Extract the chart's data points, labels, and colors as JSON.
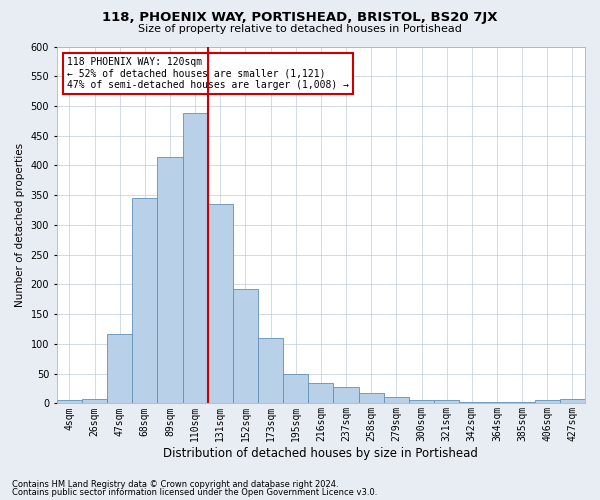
{
  "title": "118, PHOENIX WAY, PORTISHEAD, BRISTOL, BS20 7JX",
  "subtitle": "Size of property relative to detached houses in Portishead",
  "xlabel": "Distribution of detached houses by size in Portishead",
  "ylabel": "Number of detached properties",
  "bar_color": "#b8d0e8",
  "bar_edge_color": "#6090b8",
  "categories": [
    "4sqm",
    "26sqm",
    "47sqm",
    "68sqm",
    "89sqm",
    "110sqm",
    "131sqm",
    "152sqm",
    "173sqm",
    "195sqm",
    "216sqm",
    "237sqm",
    "258sqm",
    "279sqm",
    "300sqm",
    "321sqm",
    "342sqm",
    "364sqm",
    "385sqm",
    "406sqm",
    "427sqm"
  ],
  "values": [
    5,
    7,
    117,
    345,
    415,
    488,
    335,
    193,
    110,
    50,
    35,
    27,
    18,
    10,
    5,
    5,
    3,
    2,
    2,
    5,
    7
  ],
  "ylim": [
    0,
    600
  ],
  "yticks": [
    0,
    50,
    100,
    150,
    200,
    250,
    300,
    350,
    400,
    450,
    500,
    550,
    600
  ],
  "vline_bin_index": 6,
  "vline_color": "#cc0000",
  "annotation_text": "118 PHOENIX WAY: 120sqm\n← 52% of detached houses are smaller (1,121)\n47% of semi-detached houses are larger (1,008) →",
  "annotation_box_color": "#ffffff",
  "annotation_box_edge": "#cc0000",
  "footer1": "Contains HM Land Registry data © Crown copyright and database right 2024.",
  "footer2": "Contains public sector information licensed under the Open Government Licence v3.0.",
  "background_color": "#e8edf4",
  "plot_bg_color": "#ffffff",
  "grid_color": "#c0ccd8",
  "title_fontsize": 9.5,
  "subtitle_fontsize": 8,
  "ylabel_fontsize": 7.5,
  "xlabel_fontsize": 8.5,
  "tick_fontsize": 7,
  "footer_fontsize": 6,
  "annotation_fontsize": 7
}
